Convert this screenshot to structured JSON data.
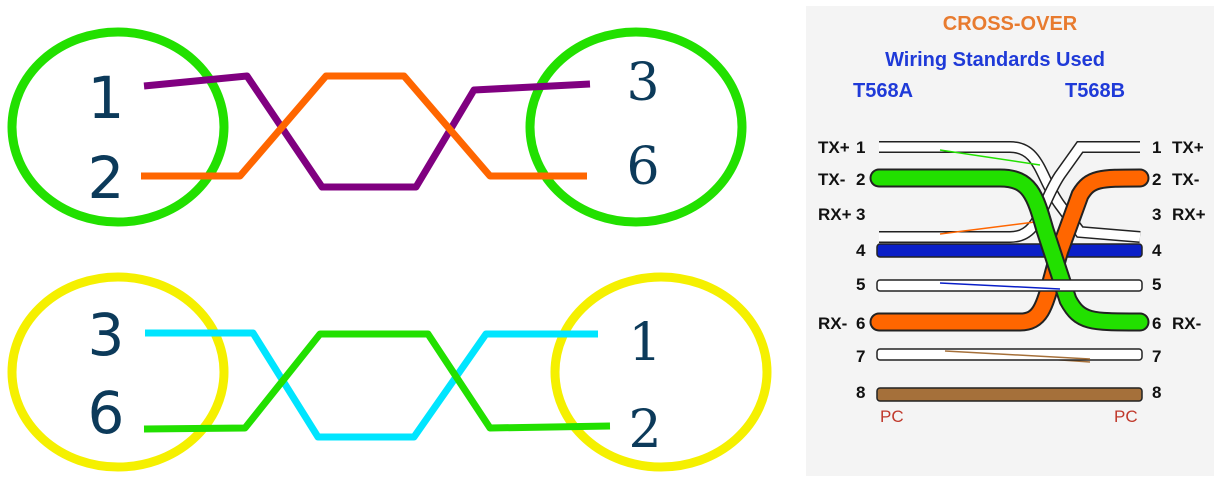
{
  "left_diagram": {
    "top_pair": {
      "left_labels": [
        "1",
        "2"
      ],
      "right_labels": [
        "3",
        "6"
      ],
      "wires": [
        {
          "from": "1",
          "to": "3",
          "color": "#800080"
        },
        {
          "from": "2",
          "to": "6",
          "color": "#ff6600"
        }
      ],
      "circle_color": "#22e000"
    },
    "bottom_pair": {
      "left_labels": [
        "3",
        "6"
      ],
      "right_labels": [
        "1",
        "2"
      ],
      "wires": [
        {
          "from": "3",
          "to": "1",
          "color": "#00e5ff"
        },
        {
          "from": "6",
          "to": "2",
          "color": "#22e000"
        }
      ],
      "circle_color": "#f5f000"
    }
  },
  "right_diagram": {
    "title": "CROSS-OVER",
    "subtitle": "Wiring Standards Used",
    "left_standard": "T568A",
    "right_standard": "T568B",
    "left_pins": [
      {
        "num": "1",
        "label": "TX+"
      },
      {
        "num": "2",
        "label": "TX-"
      },
      {
        "num": "3",
        "label": "RX+"
      },
      {
        "num": "4",
        "label": ""
      },
      {
        "num": "5",
        "label": ""
      },
      {
        "num": "6",
        "label": "RX-"
      },
      {
        "num": "7",
        "label": ""
      },
      {
        "num": "8",
        "label": ""
      }
    ],
    "right_pins": [
      {
        "num": "1",
        "label": "TX+"
      },
      {
        "num": "2",
        "label": "TX-"
      },
      {
        "num": "3",
        "label": "RX+"
      },
      {
        "num": "4",
        "label": ""
      },
      {
        "num": "5",
        "label": ""
      },
      {
        "num": "6",
        "label": "RX-"
      },
      {
        "num": "7",
        "label": ""
      },
      {
        "num": "8",
        "label": ""
      }
    ],
    "left_device": "PC",
    "right_device": "PC",
    "colors": {
      "green": "#22e000",
      "orange": "#ff6600",
      "blue": "#0a1fc8",
      "brown": "#a5703a",
      "title_orange": "#e87b2f",
      "subtitle_blue": "#1f3ad8",
      "pc_red": "#c0392b"
    }
  }
}
